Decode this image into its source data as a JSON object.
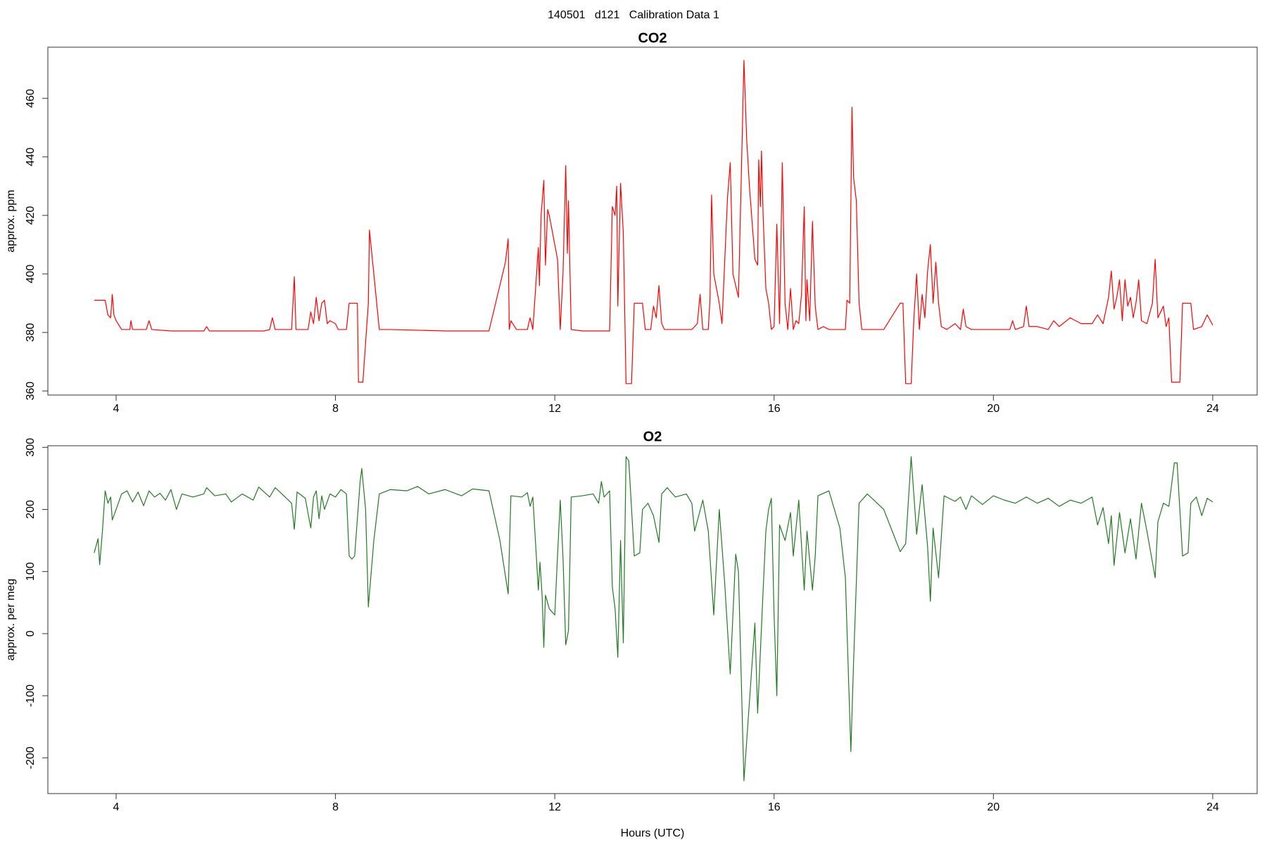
{
  "title": "140501   d121   Calibration Data 1",
  "chart_data": [
    {
      "type": "line",
      "title": "CO2",
      "y_label": "approx. ppm",
      "color": "#ff0000",
      "xlim": [
        2.755,
        24.81
      ],
      "xticks": [
        4,
        8,
        12,
        16,
        20,
        24
      ],
      "ylim": [
        358.6,
        477.5
      ],
      "yticks": [
        360,
        380,
        400,
        420,
        440,
        460
      ],
      "x": [
        3.6,
        3.8,
        3.85,
        3.9,
        3.93,
        3.96,
        4.0,
        4.1,
        4.25,
        4.27,
        4.3,
        4.55,
        4.6,
        4.65,
        5.0,
        5.6,
        5.65,
        5.7,
        6.7,
        6.8,
        6.85,
        6.9,
        7.2,
        7.25,
        7.28,
        7.5,
        7.55,
        7.6,
        7.65,
        7.7,
        7.75,
        7.8,
        7.85,
        7.9,
        8.0,
        8.05,
        8.2,
        8.25,
        8.4,
        8.42,
        8.5,
        8.6,
        8.62,
        8.7,
        8.8,
        9.0,
        10.0,
        10.8,
        11.1,
        11.15,
        11.17,
        11.2,
        11.3,
        11.5,
        11.55,
        11.6,
        11.65,
        11.7,
        11.72,
        11.75,
        11.8,
        11.83,
        11.87,
        11.9,
        12.0,
        12.05,
        12.1,
        12.15,
        12.2,
        12.23,
        12.25,
        12.3,
        12.5,
        13.0,
        13.05,
        13.1,
        13.13,
        13.15,
        13.2,
        13.25,
        13.3,
        13.4,
        13.45,
        13.6,
        13.65,
        13.75,
        13.8,
        13.85,
        13.9,
        13.95,
        14.0,
        14.5,
        14.6,
        14.65,
        14.7,
        14.8,
        14.83,
        14.86,
        14.9,
        15.0,
        15.05,
        15.15,
        15.2,
        15.25,
        15.35,
        15.42,
        15.45,
        15.5,
        15.55,
        15.65,
        15.7,
        15.72,
        15.75,
        15.77,
        15.8,
        15.85,
        15.9,
        15.95,
        16.0,
        16.05,
        16.1,
        16.15,
        16.2,
        16.25,
        16.3,
        16.35,
        16.4,
        16.45,
        16.5,
        16.55,
        16.58,
        16.6,
        16.65,
        16.7,
        16.75,
        16.8,
        16.9,
        17.0,
        17.3,
        17.33,
        17.38,
        17.42,
        17.45,
        17.5,
        17.55,
        17.6,
        18.0,
        18.3,
        18.35,
        18.4,
        18.5,
        18.55,
        18.6,
        18.65,
        18.7,
        18.75,
        18.8,
        18.85,
        18.9,
        18.95,
        19.0,
        19.05,
        19.15,
        19.3,
        19.4,
        19.45,
        19.5,
        19.6,
        20.3,
        20.35,
        20.4,
        20.55,
        20.6,
        20.65,
        20.8,
        21.0,
        21.1,
        21.2,
        21.4,
        21.6,
        21.8,
        21.9,
        22.0,
        22.1,
        22.15,
        22.2,
        22.25,
        22.3,
        22.35,
        22.4,
        22.45,
        22.5,
        22.55,
        22.6,
        22.65,
        22.7,
        22.8,
        22.9,
        22.95,
        23.0,
        23.1,
        23.15,
        23.2,
        23.25,
        23.4,
        23.45,
        23.6,
        23.65,
        23.8,
        23.9,
        24.0
      ],
      "values": [
        391,
        391,
        386,
        385,
        393,
        386,
        384,
        381,
        381,
        384,
        381,
        381,
        384,
        381,
        380.5,
        380.5,
        382,
        380.5,
        380.5,
        381,
        385,
        381,
        381,
        399,
        381,
        381,
        387,
        383,
        392,
        384,
        390,
        391,
        383,
        384,
        383,
        381,
        381,
        390,
        390,
        363,
        363,
        390,
        415,
        400,
        381,
        381,
        380.5,
        380.5,
        404,
        412,
        381,
        384,
        381,
        381,
        385,
        381,
        395,
        409,
        396,
        420,
        432,
        403,
        422,
        420,
        410,
        405,
        381,
        400,
        437,
        407,
        425,
        381,
        380.5,
        380.5,
        423,
        420,
        430,
        389,
        431,
        414,
        362.5,
        362.5,
        390,
        390,
        381,
        381,
        389,
        385,
        396,
        383,
        381,
        381,
        383,
        393,
        381,
        381,
        391,
        427,
        400,
        390,
        383,
        426,
        438,
        400,
        392,
        448,
        473,
        446,
        430,
        405,
        403,
        439,
        423,
        442,
        420,
        395,
        390,
        381,
        382,
        417,
        383,
        438,
        390,
        381,
        395,
        381,
        384,
        383,
        393,
        423,
        384,
        398,
        384,
        418,
        389,
        381,
        382,
        381,
        381,
        391,
        390,
        457,
        433,
        425,
        390,
        381,
        381,
        390,
        390,
        362.5,
        362.5,
        385,
        400,
        381,
        393,
        385,
        401,
        410,
        390,
        404,
        390,
        382,
        381,
        383,
        381,
        388,
        382,
        381,
        381,
        384,
        381,
        382,
        389,
        382,
        382,
        381,
        384,
        382,
        385,
        383,
        383,
        386,
        383,
        392,
        401,
        388,
        392,
        398,
        384,
        398,
        389,
        392,
        385,
        390,
        398,
        384,
        383,
        390,
        405,
        385,
        389,
        382,
        385,
        363,
        363,
        390,
        390,
        381,
        382,
        386,
        382.5
      ]
    },
    {
      "type": "line",
      "title": "O2",
      "y_label": "approx. per meg",
      "x_label": "Hours (UTC)",
      "color": "#237a23",
      "xlim": [
        2.755,
        24.81
      ],
      "xticks": [
        4,
        8,
        12,
        16,
        20,
        24
      ],
      "ylim": [
        -257.6,
        302.6
      ],
      "yticks": [
        -200,
        -100,
        0,
        100,
        200,
        300
      ],
      "x": [
        3.6,
        3.67,
        3.7,
        3.75,
        3.8,
        3.85,
        3.9,
        3.93,
        4.0,
        4.1,
        4.2,
        4.3,
        4.4,
        4.5,
        4.6,
        4.7,
        4.8,
        4.9,
        5.0,
        5.1,
        5.2,
        5.4,
        5.6,
        5.65,
        5.8,
        6.0,
        6.1,
        6.3,
        6.5,
        6.6,
        6.8,
        6.9,
        7.0,
        7.2,
        7.25,
        7.3,
        7.45,
        7.55,
        7.6,
        7.65,
        7.7,
        7.75,
        7.8,
        7.9,
        8.0,
        8.1,
        8.2,
        8.25,
        8.3,
        8.35,
        8.45,
        8.48,
        8.55,
        8.6,
        8.7,
        8.8,
        9.0,
        9.3,
        9.5,
        9.7,
        10.0,
        10.3,
        10.5,
        10.8,
        11.0,
        11.15,
        11.2,
        11.4,
        11.5,
        11.55,
        11.6,
        11.7,
        11.73,
        11.77,
        11.8,
        11.83,
        11.9,
        12.0,
        12.05,
        12.1,
        12.15,
        12.2,
        12.25,
        12.3,
        12.5,
        12.7,
        12.8,
        12.85,
        12.9,
        13.0,
        13.05,
        13.1,
        13.15,
        13.2,
        13.25,
        13.3,
        13.35,
        13.45,
        13.55,
        13.6,
        13.7,
        13.8,
        13.9,
        13.95,
        14.05,
        14.2,
        14.4,
        14.5,
        14.55,
        14.7,
        14.8,
        14.9,
        15.0,
        15.1,
        15.2,
        15.3,
        15.35,
        15.45,
        15.55,
        15.65,
        15.7,
        15.8,
        15.85,
        15.9,
        15.95,
        16.0,
        16.05,
        16.1,
        16.2,
        16.3,
        16.35,
        16.45,
        16.55,
        16.6,
        16.7,
        16.75,
        16.8,
        17.0,
        17.2,
        17.3,
        17.4,
        17.45,
        17.55,
        17.7,
        18.0,
        18.3,
        18.4,
        18.5,
        18.6,
        18.7,
        18.8,
        18.85,
        18.9,
        19.0,
        19.1,
        19.3,
        19.4,
        19.5,
        19.6,
        19.8,
        20.0,
        20.2,
        20.4,
        20.6,
        20.8,
        21.0,
        21.2,
        21.4,
        21.6,
        21.8,
        21.9,
        22.0,
        22.1,
        22.15,
        22.2,
        22.3,
        22.4,
        22.5,
        22.6,
        22.7,
        22.8,
        22.95,
        23.0,
        23.1,
        23.2,
        23.3,
        23.35,
        23.45,
        23.55,
        23.6,
        23.7,
        23.8,
        23.9,
        24.0
      ],
      "values": [
        130,
        153,
        111,
        165,
        230,
        210,
        220,
        183,
        200,
        225,
        230,
        212,
        228,
        206,
        230,
        220,
        226,
        215,
        232,
        200,
        225,
        220,
        225,
        235,
        222,
        225,
        212,
        225,
        215,
        236,
        220,
        235,
        227,
        210,
        168,
        228,
        218,
        170,
        220,
        230,
        185,
        222,
        200,
        225,
        220,
        232,
        225,
        125,
        120,
        125,
        245,
        266,
        200,
        43,
        150,
        225,
        232,
        230,
        237,
        225,
        232,
        222,
        233,
        230,
        150,
        64,
        222,
        220,
        227,
        205,
        220,
        70,
        115,
        60,
        -22,
        62,
        40,
        30,
        125,
        215,
        123,
        -18,
        5,
        220,
        222,
        225,
        210,
        245,
        220,
        230,
        75,
        40,
        -38,
        150,
        -15,
        285,
        278,
        125,
        130,
        200,
        210,
        190,
        147,
        225,
        235,
        220,
        225,
        210,
        165,
        215,
        165,
        30,
        200,
        80,
        -65,
        128,
        100,
        -237,
        -110,
        17,
        -128,
        70,
        165,
        200,
        218,
        30,
        -100,
        175,
        150,
        195,
        125,
        215,
        70,
        165,
        70,
        125,
        222,
        230,
        170,
        90,
        -190,
        -45,
        210,
        225,
        200,
        132,
        145,
        285,
        160,
        240,
        140,
        52,
        170,
        90,
        222,
        213,
        220,
        200,
        222,
        208,
        222,
        215,
        210,
        220,
        210,
        218,
        205,
        215,
        210,
        220,
        175,
        203,
        145,
        190,
        110,
        195,
        130,
        185,
        120,
        210,
        165,
        90,
        180,
        210,
        205,
        275,
        275,
        125,
        130,
        210,
        220,
        190,
        218,
        212
      ]
    }
  ]
}
